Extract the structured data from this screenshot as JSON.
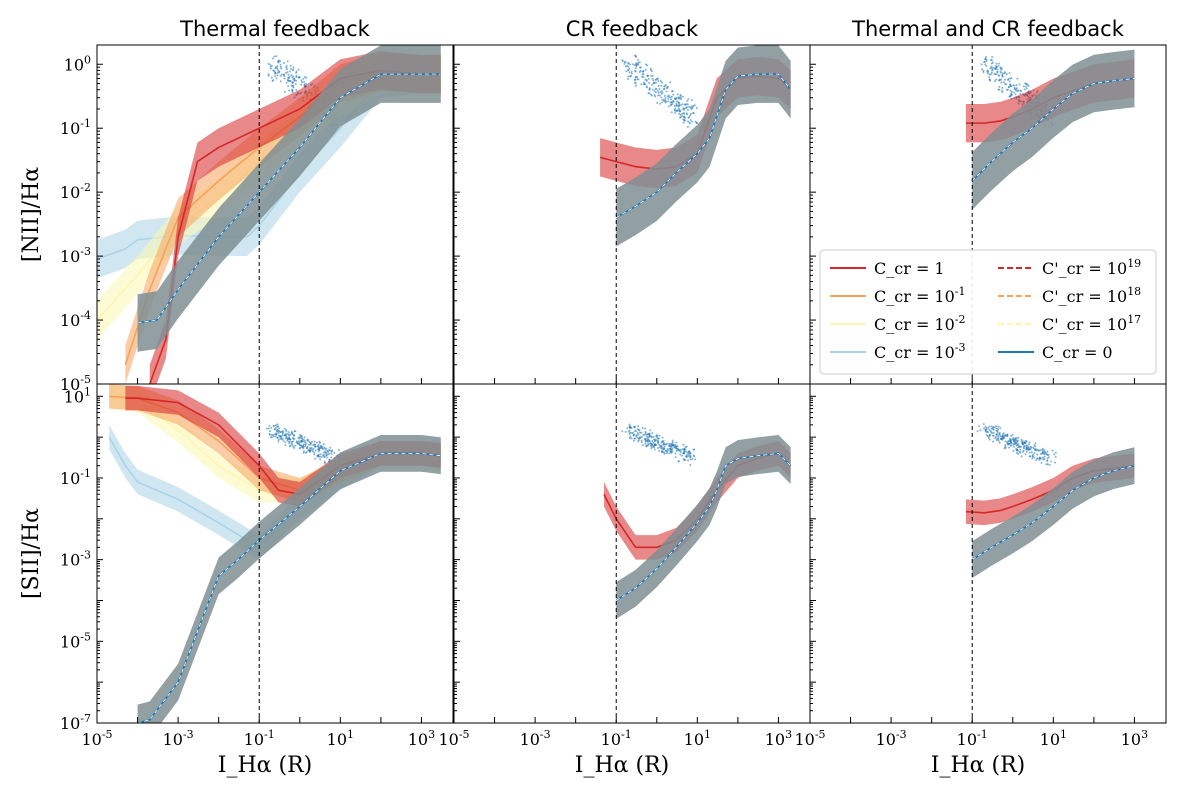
{
  "chart_data": {
    "type": "line",
    "columns": [
      "Thermal feedback",
      "CR feedback",
      "Thermal and CR feedback"
    ],
    "rows": [
      {
        "ylabel": "[NII]/Hα",
        "ylim": [
          1e-05,
          2
        ],
        "yticks": [
          "10^{-5}",
          "10^{-4}",
          "10^{-3}",
          "10^{-2}",
          "10^{-1}",
          "10^{0}"
        ]
      },
      {
        "ylabel": "[SII]/Hα",
        "ylim": [
          1e-07,
          20
        ],
        "yticks": [
          "10^{-7}",
          "10^{-5}",
          "10^{-3}",
          "10^{-1}",
          "10^{1}"
        ]
      }
    ],
    "xlabel": "I_Hα (R)",
    "xlim": [
      1e-05,
      6000
    ],
    "xticks": [
      "10^{-5}",
      "10^{-3}",
      "10^{-1}",
      "10^{1}",
      "10^{3}"
    ],
    "vline_x": 0.1,
    "legend": [
      {
        "label": "C_cr = 1",
        "color": "#d62728",
        "style": "solid"
      },
      {
        "label": "C_cr = 10^{-1}",
        "color": "#f5a35c",
        "style": "solid"
      },
      {
        "label": "C_cr = 10^{-2}",
        "color": "#fbf7b0",
        "style": "solid"
      },
      {
        "label": "C_cr = 10^{-3}",
        "color": "#a9d4e8",
        "style": "solid"
      },
      {
        "label": "C'_cr = 10^{19}",
        "color": "#d62728",
        "style": "dashed"
      },
      {
        "label": "C'_cr = 10^{18}",
        "color": "#f5a35c",
        "style": "dashed"
      },
      {
        "label": "C'_cr = 10^{17}",
        "color": "#fbf7b0",
        "style": "dashed"
      },
      {
        "label": "C_cr = 0",
        "color": "#1f77b4",
        "style": "solid"
      }
    ],
    "legend_location": "lower right of top-right panel",
    "panels": [
      {
        "row": 0,
        "col": 0,
        "series": [
          {
            "name": "C_cr = 10^{-3}",
            "color": "#a9d4e8",
            "x": [
              1e-05,
              5e-05,
              0.0001,
              0.001,
              0.01,
              0.05,
              0.1,
              1,
              10,
              100,
              1000,
              3000
            ],
            "y": [
              0.0009,
              0.0013,
              0.0018,
              0.0021,
              0.002,
              0.002,
              0.003,
              0.02,
              0.1,
              0.6,
              0.7,
              0.7
            ]
          },
          {
            "name": "C_cr = 10^{-2}",
            "color": "#fbf7b0",
            "x": [
              1e-05,
              0.0001,
              0.001,
              0.01,
              0.1,
              1,
              10,
              100,
              1000,
              3000
            ],
            "y": [
              0.0001,
              0.0005,
              0.003,
              0.008,
              0.03,
              0.1,
              0.3,
              0.7,
              0.7,
              0.7
            ]
          },
          {
            "name": "C_cr = 10^{-1}",
            "color": "#f5a35c",
            "x": [
              5e-05,
              0.0002,
              0.001,
              0.01,
              0.1,
              1,
              10,
              100,
              1000,
              3000
            ],
            "y": [
              2e-05,
              0.0003,
              0.004,
              0.015,
              0.05,
              0.15,
              0.5,
              0.75,
              0.7,
              0.7
            ]
          },
          {
            "name": "C_cr = 1",
            "color": "#d62728",
            "x": [
              0.0002,
              0.0005,
              0.001,
              0.003,
              0.01,
              0.1,
              1,
              10,
              100,
              1000,
              3000
            ],
            "y": [
              1e-05,
              5e-05,
              0.002,
              0.03,
              0.05,
              0.1,
              0.2,
              0.6,
              0.8,
              0.7,
              0.7
            ]
          },
          {
            "name": "C_cr = 0",
            "color": "#1f77b4",
            "x": [
              0.0001,
              0.0003,
              0.001,
              0.01,
              0.1,
              1,
              10,
              100,
              1000,
              3000
            ],
            "y": [
              9e-05,
              0.0001,
              0.0003,
              0.002,
              0.01,
              0.05,
              0.3,
              0.7,
              0.7,
              0.7
            ]
          }
        ]
      },
      {
        "row": 0,
        "col": 1,
        "series": [
          {
            "name": "C_cr = 1",
            "color": "#d62728",
            "x": [
              0.04,
              0.1,
              0.3,
              1,
              3,
              10,
              30,
              100,
              300,
              1000,
              2000
            ],
            "y": [
              0.035,
              0.03,
              0.025,
              0.023,
              0.025,
              0.04,
              0.3,
              0.6,
              0.65,
              0.6,
              0.4
            ]
          },
          {
            "name": "C_cr = 0",
            "color": "#1f77b4",
            "x": [
              0.1,
              0.3,
              1,
              3,
              10,
              20,
              50,
              100,
              300,
              1000,
              2000
            ],
            "y": [
              0.004,
              0.006,
              0.01,
              0.02,
              0.04,
              0.07,
              0.4,
              0.65,
              0.7,
              0.7,
              0.4
            ]
          }
        ]
      },
      {
        "row": 0,
        "col": 2,
        "series": [
          {
            "name": "C_cr = 1",
            "color": "#d62728",
            "x": [
              0.07,
              0.2,
              0.5,
              1,
              3,
              10,
              100,
              1000
            ],
            "y": [
              0.12,
              0.12,
              0.13,
              0.15,
              0.2,
              0.3,
              0.5,
              0.6
            ]
          },
          {
            "name": "C_cr = 0",
            "color": "#1f77b4",
            "x": [
              0.1,
              0.3,
              1,
              3,
              10,
              30,
              100,
              300,
              1000
            ],
            "y": [
              0.015,
              0.03,
              0.06,
              0.1,
              0.2,
              0.35,
              0.5,
              0.55,
              0.6
            ]
          }
        ]
      },
      {
        "row": 1,
        "col": 0,
        "series": [
          {
            "name": "C_cr = 10^{-3}",
            "color": "#a9d4e8",
            "x": [
              2e-05,
              5e-05,
              0.0001,
              0.001,
              0.01,
              0.1,
              1,
              10,
              100,
              1000,
              3000
            ],
            "y": [
              1.0,
              0.2,
              0.08,
              0.03,
              0.008,
              0.002,
              0.02,
              0.1,
              0.4,
              0.4,
              0.4
            ]
          },
          {
            "name": "C_cr = 10^{-2}",
            "color": "#fbf7b0",
            "x": [
              2e-05,
              0.0001,
              0.001,
              0.01,
              0.1,
              1,
              10,
              100,
              1000,
              3000
            ],
            "y": [
              10,
              8,
              1.5,
              0.2,
              0.05,
              0.05,
              0.15,
              0.4,
              0.4,
              0.3
            ]
          },
          {
            "name": "C_cr = 10^{-1}",
            "color": "#f5a35c",
            "x": [
              2e-05,
              0.0001,
              0.001,
              0.01,
              0.1,
              1,
              10,
              100,
              1000,
              3000
            ],
            "y": [
              10,
              9,
              4,
              0.8,
              0.1,
              0.05,
              0.15,
              0.4,
              0.4,
              0.35
            ]
          },
          {
            "name": "C_cr = 1",
            "color": "#d62728",
            "x": [
              5e-05,
              0.0001,
              0.001,
              0.01,
              0.1,
              0.3,
              1,
              10,
              100,
              1000,
              3000
            ],
            "y": [
              9,
              9,
              7,
              2,
              0.2,
              0.05,
              0.04,
              0.2,
              0.4,
              0.4,
              0.35
            ]
          },
          {
            "name": "C_cr = 0",
            "color": "#1f77b4",
            "x": [
              0.0001,
              0.0002,
              0.001,
              0.01,
              0.03,
              0.1,
              1,
              10,
              100,
              1000,
              3000
            ],
            "y": [
              1e-07,
              1.2e-07,
              1e-06,
              0.0004,
              0.001,
              0.003,
              0.02,
              0.15,
              0.4,
              0.4,
              0.35
            ]
          }
        ]
      },
      {
        "row": 1,
        "col": 1,
        "series": [
          {
            "name": "C_cr = 1",
            "color": "#d62728",
            "x": [
              0.05,
              0.1,
              0.3,
              1,
              3,
              10,
              30,
              100,
              300,
              1000,
              2000
            ],
            "y": [
              0.04,
              0.01,
              0.002,
              0.002,
              0.003,
              0.01,
              0.05,
              0.2,
              0.3,
              0.4,
              0.2
            ]
          },
          {
            "name": "C_cr = 0",
            "color": "#1f77b4",
            "x": [
              0.1,
              0.3,
              1,
              3,
              10,
              20,
              30,
              50,
              100,
              300,
              1000,
              2000
            ],
            "y": [
              0.0001,
              0.0002,
              0.0006,
              0.002,
              0.008,
              0.02,
              0.05,
              0.2,
              0.3,
              0.35,
              0.4,
              0.2
            ]
          }
        ]
      },
      {
        "row": 1,
        "col": 2,
        "series": [
          {
            "name": "C_cr = 1",
            "color": "#d62728",
            "x": [
              0.07,
              0.2,
              0.5,
              1,
              3,
              10,
              30,
              100,
              1000
            ],
            "y": [
              0.015,
              0.014,
              0.016,
              0.02,
              0.03,
              0.05,
              0.1,
              0.15,
              0.2
            ]
          },
          {
            "name": "C_cr = 0",
            "color": "#1f77b4",
            "x": [
              0.1,
              0.3,
              1,
              3,
              10,
              30,
              100,
              300,
              1000
            ],
            "y": [
              0.001,
              0.002,
              0.004,
              0.008,
              0.02,
              0.05,
              0.1,
              0.15,
              0.2
            ]
          }
        ]
      }
    ],
    "observations": {
      "name": "observed points",
      "color": "#1f77b4",
      "row0_center": {
        "x_range": [
          0.2,
          8
        ],
        "y_range": [
          0.15,
          1.0
        ]
      },
      "row1_center": {
        "x_range": [
          0.2,
          8
        ],
        "y_range": [
          0.3,
          1.5
        ]
      }
    }
  }
}
